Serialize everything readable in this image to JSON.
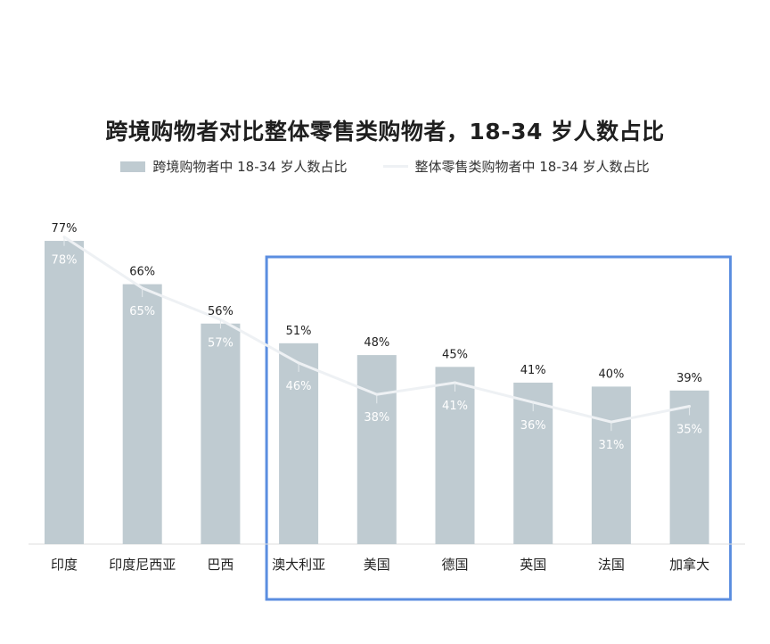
{
  "chart_data": {
    "type": "bar",
    "title": "跨境购物者对比整体零售类购物者，18-34 岁人数占比",
    "categories": [
      "印度",
      "印度尼西亚",
      "巴西",
      "澳大利亚",
      "美国",
      "德国",
      "英国",
      "法国",
      "加拿大"
    ],
    "series": [
      {
        "name": "跨境购物者中 18-34 岁人数占比",
        "type": "bar",
        "values": [
          77,
          66,
          56,
          51,
          48,
          45,
          41,
          40,
          39
        ],
        "labels": [
          "77%",
          "66%",
          "56%",
          "51%",
          "48%",
          "45%",
          "41%",
          "40%",
          "39%"
        ]
      },
      {
        "name": "整体零售类购物者中 18-34 岁人数占比",
        "type": "line",
        "values": [
          78,
          65,
          57,
          46,
          38,
          41,
          36,
          31,
          35
        ],
        "labels": [
          "78%",
          "65%",
          "57%",
          "46%",
          "38%",
          "41%",
          "36%",
          "31%",
          "35%"
        ]
      }
    ],
    "ylim": [
      0,
      80
    ],
    "grid": false,
    "legend_position": "top-center",
    "highlight_categories": [
      "澳大利亚",
      "美国",
      "德国",
      "英国",
      "法国",
      "加拿大"
    ]
  },
  "colors": {
    "bar": "#bfcbd1",
    "line": "#eef1f4",
    "highlight_border": "#5b8ee0",
    "axis": "#dddddd"
  }
}
